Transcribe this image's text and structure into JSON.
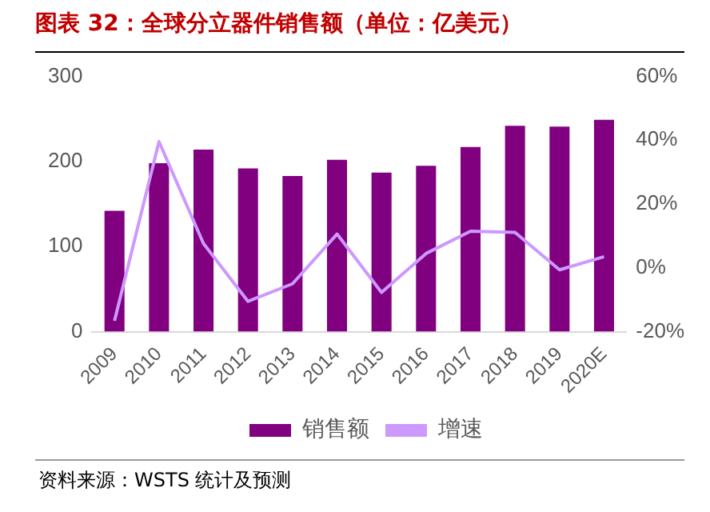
{
  "chart_data": {
    "type": "bar",
    "title": "图表 32：全球分立器件销售额（单位：亿美元）",
    "categories": [
      "2009",
      "2010",
      "2011",
      "2012",
      "2013",
      "2014",
      "2015",
      "2016",
      "2017",
      "2018",
      "2019",
      "2020E"
    ],
    "series": [
      {
        "name": "销售额",
        "color": "#800080",
        "values": [
          142,
          198,
          214,
          192,
          183,
          202,
          187,
          195,
          217,
          242,
          241,
          249
        ]
      },
      {
        "name": "增速",
        "type": "line",
        "axis": "y2",
        "color": "#cc99ff",
        "values": [
          -16.6,
          39.6,
          7.6,
          -10.5,
          -5,
          10.6,
          -7.7,
          4.5,
          11.5,
          11.1,
          -0.6,
          3.5
        ]
      }
    ],
    "ylim": [
      0,
      300
    ],
    "yticks": [
      0,
      100,
      200,
      300
    ],
    "y2lim": [
      -20,
      60
    ],
    "y2ticks": [
      {
        "value": -20,
        "label": "-20%"
      },
      {
        "value": 0,
        "label": "0%"
      },
      {
        "value": 20,
        "label": "20%"
      },
      {
        "value": 40,
        "label": "40%"
      },
      {
        "value": 60,
        "label": "60%"
      }
    ],
    "grid": false,
    "legend": "bottom",
    "marker": "none",
    "annotations": [
      "资料来源：WSTS 统计及预测"
    ]
  }
}
